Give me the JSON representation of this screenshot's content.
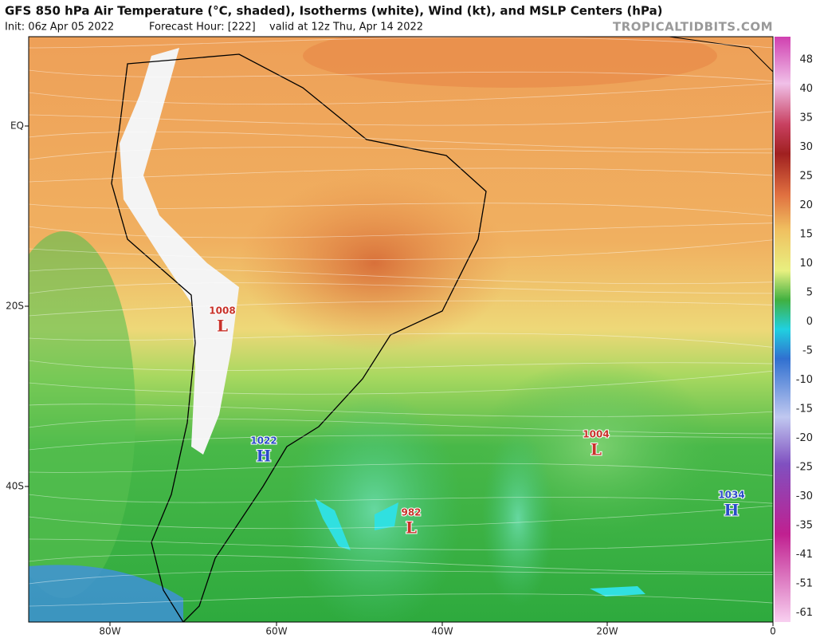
{
  "header": {
    "title": "GFS 850 hPa Air Temperature (°C, shaded), Isotherms (white), Wind (kt), and MSLP Centers (hPa)",
    "init": "Init: 06z Apr 05 2022",
    "forecast_hour": "Forecast Hour: [222]",
    "valid": "valid at 12z Thu, Apr 14 2022",
    "site": "TROPICALTIDBITS.COM"
  },
  "map": {
    "lat_labels": [
      "EQ",
      "20S",
      "40S"
    ],
    "lon_labels": [
      "80W",
      "60W",
      "40W",
      "20W",
      "0"
    ],
    "centers": [
      {
        "pressure": 1008,
        "type": "L"
      },
      {
        "pressure": 1022,
        "type": "H"
      },
      {
        "pressure": 1004,
        "type": "L"
      },
      {
        "pressure": 982,
        "type": "L"
      },
      {
        "pressure": 1034,
        "type": "H"
      }
    ]
  },
  "colorbar": {
    "labels": [
      48,
      40,
      35,
      30,
      25,
      20,
      15,
      10,
      5,
      0,
      -5,
      -10,
      -15,
      -20,
      -25,
      -30,
      -35,
      -41,
      -51,
      -61
    ]
  }
}
